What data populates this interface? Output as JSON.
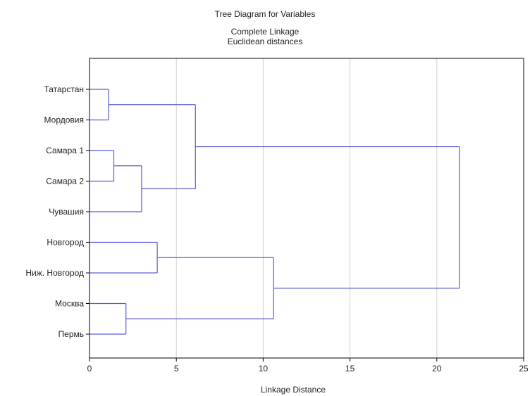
{
  "chart_data": {
    "type": "dendrogram",
    "title": "Tree Diagram for  Variables",
    "subtitle_lines": [
      "Complete Linkage",
      "Euclidean distances"
    ],
    "xlabel": "Linkage Distance",
    "ylabel": "",
    "xlim": [
      0,
      25
    ],
    "x_ticks": [
      0,
      5,
      10,
      15,
      20,
      25
    ],
    "grid": "vertical",
    "leaves": [
      "Татарстан",
      "Мордовия",
      "Самара 1",
      "Самара 2",
      "Чувашия",
      "Новгород",
      "Ниж. Новгород",
      "Москва",
      "Пермь"
    ],
    "merges": [
      {
        "a": "Татарстан",
        "b": "Мордовия",
        "distance": 1.1
      },
      {
        "a": "Самара 1",
        "b": "Самара 2",
        "distance": 1.4
      },
      {
        "a": "Москва",
        "b": "Пермь",
        "distance": 2.1
      },
      {
        "a": "Самара 1 + Самара 2",
        "b": "Чувашия",
        "distance": 3.0
      },
      {
        "a": "Новгород",
        "b": "Ниж. Новгород",
        "distance": 3.9
      },
      {
        "a": "Татарстан + Мордовия",
        "b": "Самара + Чувашия",
        "distance": 6.1
      },
      {
        "a": "Новгород + Ниж. Новгород",
        "b": "Москва + Пермь",
        "distance": 10.6
      },
      {
        "a": "Upper cluster",
        "b": "Lower cluster",
        "distance": 21.3
      }
    ],
    "colors": {
      "branches": "#5a5ad6",
      "grid": "#d0d0d0",
      "frame": "#000000"
    }
  }
}
